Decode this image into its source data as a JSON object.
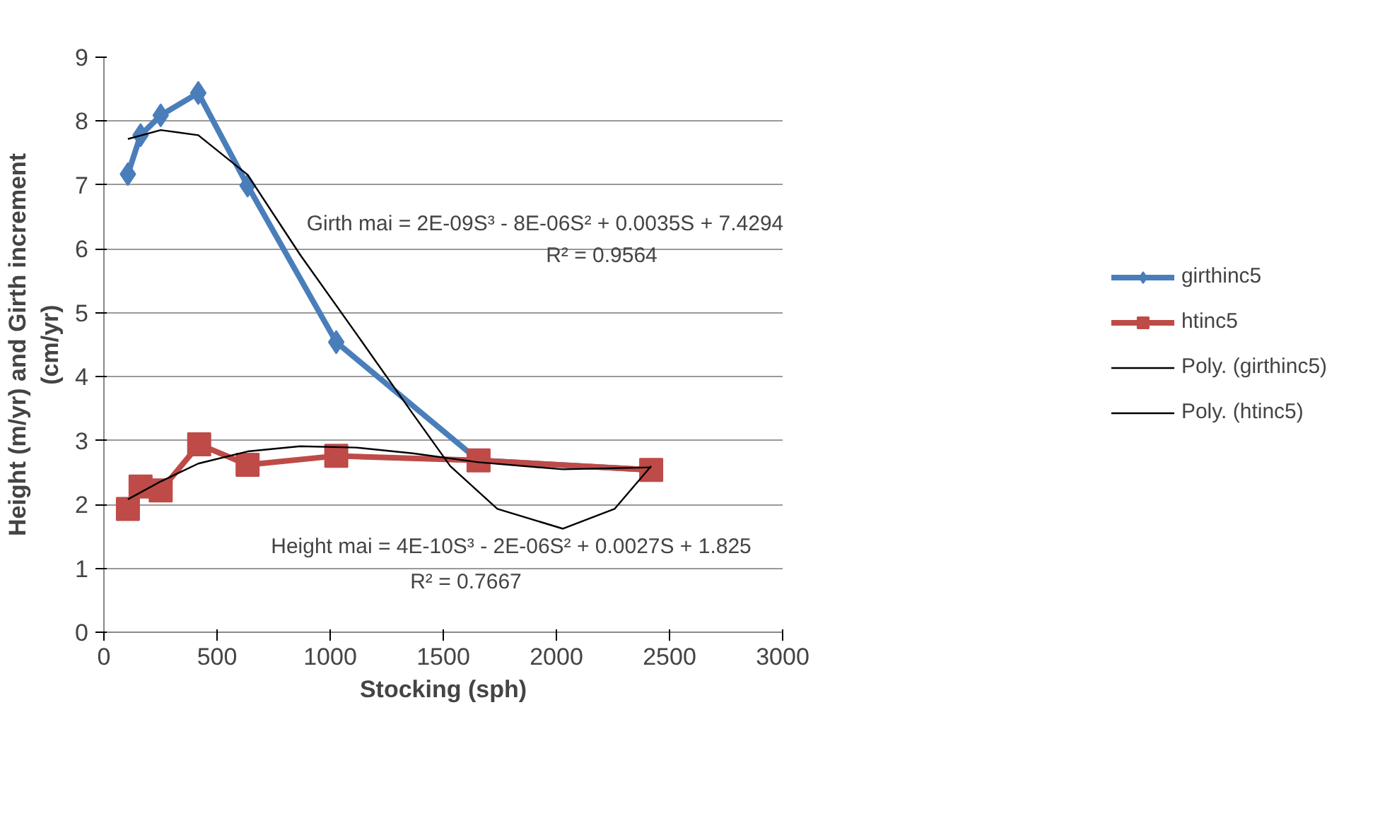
{
  "chart_data": {
    "type": "line",
    "xlabel": "Stocking (sph)",
    "ylabel": "Height (m/yr) and Girth increment\n(cm/yr)",
    "xlim": [
      0,
      3000
    ],
    "xticks": [
      0,
      500,
      1000,
      1500,
      2000,
      2500,
      3000
    ],
    "ylim": [
      0,
      9
    ],
    "yticks": [
      0,
      1,
      2,
      3,
      4,
      5,
      6,
      7,
      8,
      9
    ],
    "grid": "y",
    "legend": "right",
    "series": [
      {
        "name": "girthinc5",
        "color": "#4a7ebb",
        "marker": "diamond",
        "x": [
          106,
          162,
          251,
          417,
          635,
          1027,
          1656,
          2419
        ],
        "values": [
          7.17,
          7.78,
          8.09,
          8.44,
          6.99,
          4.54,
          2.69,
          2.54
        ]
      },
      {
        "name": "htinc5",
        "color": "#be4b48",
        "marker": "square",
        "x": [
          106,
          162,
          251,
          421,
          635,
          1027,
          1656,
          2419
        ],
        "values": [
          1.93,
          2.28,
          2.22,
          2.94,
          2.62,
          2.76,
          2.69,
          2.54
        ]
      },
      {
        "name": "Poly. (girthinc5)",
        "color": "#000000",
        "marker": "none",
        "x": [
          106,
          251,
          417,
          635,
          867,
          1116,
          1365,
          1531,
          1739,
          2029,
          2257,
          2419
        ],
        "values": [
          7.72,
          7.86,
          7.78,
          7.16,
          5.91,
          4.67,
          3.42,
          2.6,
          1.93,
          1.62,
          1.93,
          2.6
        ]
      },
      {
        "name": "Poly. (htinc5)",
        "color": "#000000",
        "marker": "none",
        "x": [
          106,
          251,
          417,
          635,
          867,
          1116,
          1365,
          1656,
          2029,
          2419
        ],
        "values": [
          2.08,
          2.36,
          2.64,
          2.83,
          2.91,
          2.89,
          2.8,
          2.66,
          2.55,
          2.58
        ]
      }
    ],
    "annotations": [
      "Girth mai = 2E-09S³ - 8E-06S² + 0.0035S + 7.4294",
      "R² = 0.9564",
      "Height mai = 4E-10S³ - 2E-06S² + 0.0027S + 1.825",
      "R² = 0.7667"
    ]
  }
}
